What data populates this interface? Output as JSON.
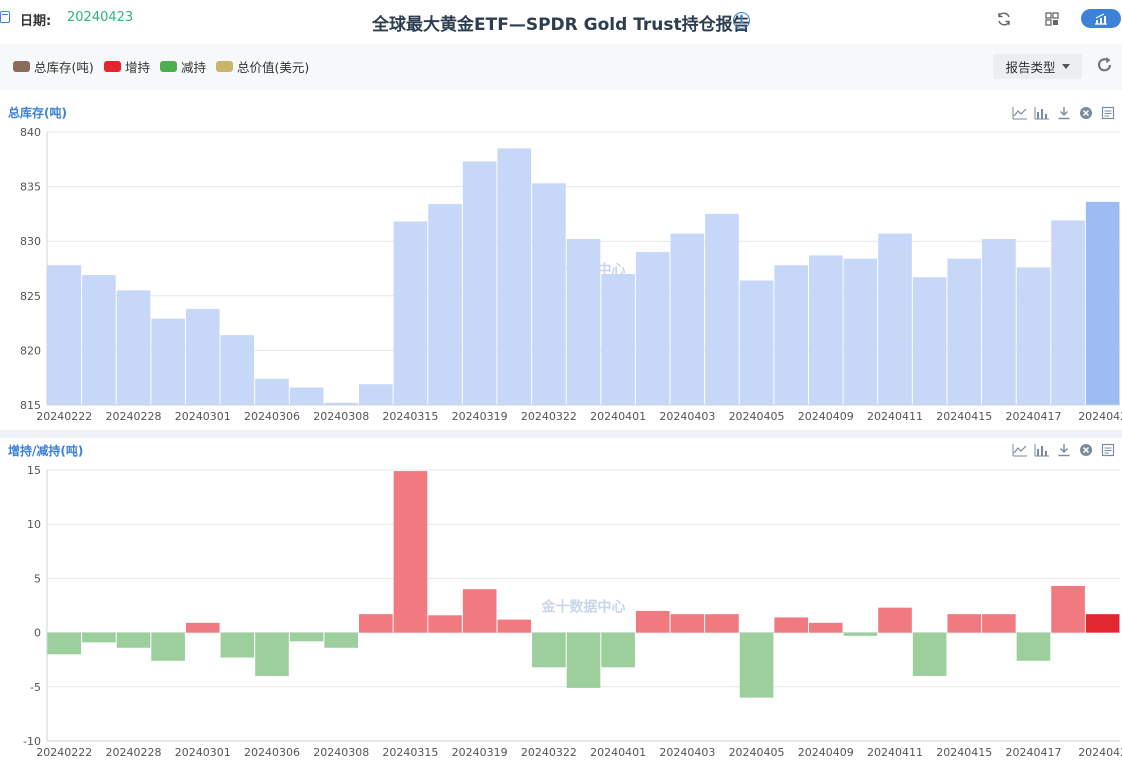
{
  "header": {
    "date_label": "日期:",
    "date_value": "20240423",
    "title": "全球最大黄金ETF—SPDR Gold Trust持仓报告",
    "info_icon": "i"
  },
  "legend": [
    {
      "label": "总库存(吨)",
      "color": "#8b6b5a"
    },
    {
      "label": "增持",
      "color": "#e32730"
    },
    {
      "label": "减持",
      "color": "#4caf50"
    },
    {
      "label": "总价值(美元)",
      "color": "#c9b46a"
    }
  ],
  "controls": {
    "report_type_label": "报告类型"
  },
  "colors": {
    "accent": "#3b82d8",
    "inventory_bar": "#c6d7f7",
    "inventory_bar_highlight": "#9dbcf3",
    "increase_bar": "#f07a80",
    "increase_bar_highlight": "#e32730",
    "decrease_bar": "#9ccf9c"
  },
  "watermark": "金十数据中心",
  "chart_data": [
    {
      "type": "bar",
      "title": "总库存(吨)",
      "ylim": [
        815,
        840
      ],
      "yticks": [
        815,
        820,
        825,
        830,
        835,
        840
      ],
      "grid": true,
      "values": [
        827.8,
        826.9,
        825.5,
        822.9,
        823.8,
        821.4,
        817.4,
        816.6,
        815.2,
        816.9,
        831.8,
        833.4,
        837.3,
        838.5,
        835.3,
        830.2,
        827.0,
        829.0,
        830.7,
        832.5,
        826.4,
        827.8,
        828.7,
        828.4,
        830.7,
        826.7,
        828.4,
        830.2,
        827.6,
        831.9,
        833.6
      ],
      "xtick_labels": [
        "20240222",
        "20240228",
        "20240301",
        "20240306",
        "20240308",
        "20240315",
        "20240319",
        "20240322",
        "20240401",
        "20240403",
        "20240405",
        "20240409",
        "20240411",
        "20240415",
        "20240417",
        "2024042"
      ]
    },
    {
      "type": "bar",
      "title": "增持/减持(吨)",
      "ylim": [
        -10,
        15
      ],
      "yticks": [
        -10,
        -5,
        0,
        5,
        10,
        15
      ],
      "grid": true,
      "values": [
        -2.0,
        -0.9,
        -1.4,
        -2.6,
        0.9,
        -2.3,
        -4.0,
        -0.8,
        -1.4,
        1.7,
        14.9,
        1.6,
        4.0,
        1.2,
        -3.2,
        -5.1,
        -3.2,
        2.0,
        1.7,
        1.7,
        -6.0,
        1.4,
        0.9,
        -0.3,
        2.3,
        -4.0,
        1.7,
        1.7,
        -2.6,
        4.3,
        1.7
      ],
      "xtick_labels": [
        "20240222",
        "20240228",
        "20240301",
        "20240306",
        "20240308",
        "20240315",
        "20240319",
        "20240322",
        "20240401",
        "20240403",
        "20240405",
        "20240409",
        "20240411",
        "20240415",
        "20240417",
        "2024042"
      ]
    }
  ]
}
